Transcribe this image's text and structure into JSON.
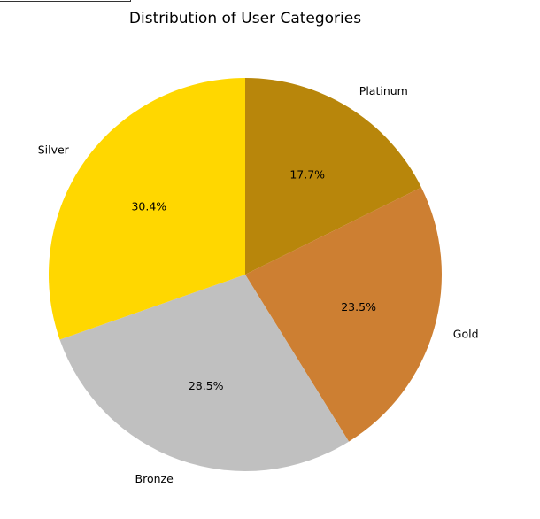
{
  "chart_data": {
    "type": "pie",
    "title": "Distribution of User Categories",
    "start_angle_deg": 90,
    "direction": "clockwise",
    "slices": [
      {
        "label": "Platinum",
        "value": 17.7,
        "pct_label": "17.7%",
        "color": "#B8860B"
      },
      {
        "label": "Gold",
        "value": 23.5,
        "pct_label": "23.5%",
        "color": "#CD7F32"
      },
      {
        "label": "Bronze",
        "value": 28.5,
        "pct_label": "28.5%",
        "color": "#C0C0C0"
      },
      {
        "label": "Silver",
        "value": 30.4,
        "pct_label": "30.4%",
        "color": "#FFD700"
      }
    ]
  }
}
